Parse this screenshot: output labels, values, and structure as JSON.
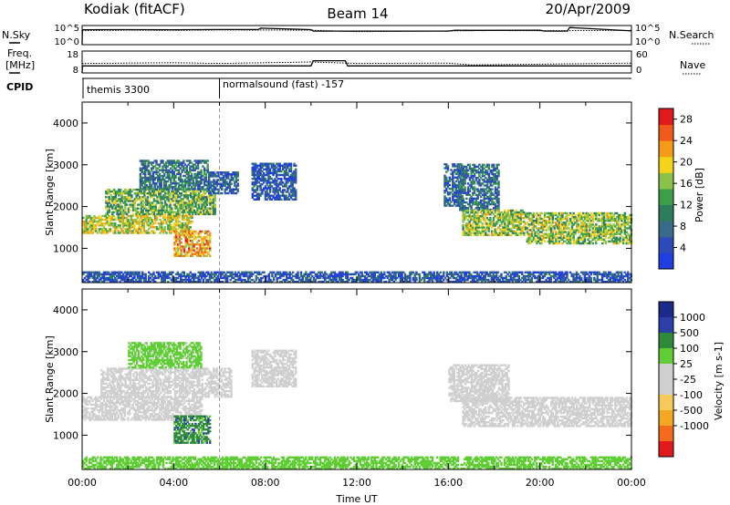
{
  "header": {
    "station": "Kodiak (fitACF)",
    "beam": "Beam 14",
    "date": "20/Apr/2009"
  },
  "side_labels": {
    "nsky": "N.Sky",
    "freq_line1": "Freq.",
    "freq_line2": "[MHz]",
    "cpid": "CPID",
    "nsearch": "N.Search",
    "nave": "Nave"
  },
  "cpid_segments": [
    {
      "start_hour": 0.0,
      "label": "themis 3300"
    },
    {
      "start_hour": 6.0,
      "label": "normalsound (fast) -157"
    }
  ],
  "colors": {
    "velocity_scale": [
      "#e31a1c",
      "#f36b1c",
      "#f5a623",
      "#f7c85a",
      "#cfcfcf",
      "#cfcfcf",
      "#5fce34",
      "#2e8b3a",
      "#2b3fa8",
      "#1a2b8c"
    ],
    "power_scale": [
      "#1f3fe0",
      "#2c4ab8",
      "#3a6a8a",
      "#2e7d5a",
      "#3aa04a",
      "#8bc34a",
      "#f5d31a",
      "#f59b1a",
      "#f05a1a",
      "#e01a1a"
    ],
    "ground_scatter": "#c8c8c8"
  },
  "chart_data": [
    {
      "type": "line",
      "title": "N.Sky / N.Search",
      "y_scale": "log",
      "ylim": [
        1,
        100000
      ],
      "y_ticks_left": [
        "10^5",
        "10^0"
      ],
      "y_ticks_right": [
        "10^5",
        "10^0"
      ],
      "x_range_hours": [
        0,
        24
      ],
      "series": [
        {
          "name": "N.Sky",
          "x": [
            0,
            0.01,
            2,
            4,
            6,
            7.7,
            7.8,
            10,
            10.1,
            12,
            16,
            16.3,
            17,
            20,
            20.2,
            21.2,
            21.3,
            24
          ],
          "y": [
            1,
            8000,
            8500,
            8000,
            9000,
            9000,
            20000,
            8500,
            3500,
            3500,
            3500,
            6000,
            5500,
            6000,
            3500,
            3500,
            30000,
            4000
          ]
        },
        {
          "name": "N.Search",
          "x": [
            0,
            2,
            4,
            6,
            8,
            10,
            12,
            16,
            18,
            20,
            22,
            24
          ],
          "y": [
            5000,
            6000,
            5500,
            7000,
            6500,
            6000,
            2500,
            4000,
            5000,
            4500,
            5000,
            5500
          ]
        }
      ]
    },
    {
      "type": "line",
      "title": "Freq. [MHz] / Nave",
      "ylim_left": [
        8,
        18
      ],
      "y_ticks_left": [
        "18",
        "8"
      ],
      "ylim_right": [
        0,
        60
      ],
      "y_ticks_right": [
        "60",
        "0"
      ],
      "x_range_hours": [
        0,
        24
      ],
      "series": [
        {
          "name": "Freq.",
          "x": [
            0,
            0.01,
            10,
            10.1,
            11.5,
            11.6,
            24
          ],
          "y": [
            8,
            11.2,
            11.2,
            13.6,
            13.6,
            11.2,
            11.2
          ]
        },
        {
          "name": "Nave",
          "x": [
            0,
            4,
            6,
            10,
            12,
            16,
            17,
            20,
            24
          ],
          "y": [
            26,
            28,
            26,
            30,
            26,
            27,
            22,
            24,
            27
          ]
        }
      ]
    },
    {
      "type": "heatmap",
      "title": "Power",
      "xlabel": "",
      "ylabel": "Slant Range [km]",
      "x_range_hours": [
        0,
        24
      ],
      "ylim": [
        180,
        4500
      ],
      "y_ticks": [
        1000,
        2000,
        3000,
        4000
      ],
      "colorbar": {
        "label": "Power [dB]",
        "range": [
          0,
          30
        ],
        "ticks": [
          4,
          8,
          12,
          16,
          20,
          24,
          28
        ]
      },
      "regions": [
        {
          "t0": 0.0,
          "t1": 4.8,
          "r0": 1350,
          "r1": 1800,
          "value": 18
        },
        {
          "t0": 1.0,
          "t1": 5.8,
          "r0": 1800,
          "r1": 2400,
          "value": 14
        },
        {
          "t0": 2.5,
          "t1": 5.5,
          "r0": 2400,
          "r1": 3100,
          "value": 9
        },
        {
          "t0": 4.0,
          "t1": 5.6,
          "r0": 800,
          "r1": 1400,
          "value": 22
        },
        {
          "t0": 5.5,
          "t1": 6.8,
          "r0": 2300,
          "r1": 2800,
          "value": 6
        },
        {
          "t0": 7.4,
          "t1": 9.3,
          "r0": 2150,
          "r1": 3050,
          "value": 5
        },
        {
          "t0": 15.8,
          "t1": 16.6,
          "r0": 2000,
          "r1": 3000,
          "value": 6
        },
        {
          "t0": 16.4,
          "t1": 18.2,
          "r0": 1900,
          "r1": 3000,
          "value": 8
        },
        {
          "t0": 16.6,
          "t1": 19.4,
          "r0": 1300,
          "r1": 1900,
          "value": 16
        },
        {
          "t0": 19.4,
          "t1": 24.0,
          "r0": 1100,
          "r1": 1850,
          "value": 16
        },
        {
          "t0": 0.0,
          "t1": 24.0,
          "r0": 180,
          "r1": 420,
          "value": 5
        }
      ]
    },
    {
      "type": "heatmap",
      "title": "Velocity",
      "xlabel": "Time UT",
      "ylabel": "Slant Range [km]",
      "x_ticks": [
        "00:00",
        "04:00",
        "08:00",
        "12:00",
        "16:00",
        "20:00",
        "00:00"
      ],
      "x_range_hours": [
        0,
        24
      ],
      "ylim": [
        180,
        4500
      ],
      "y_ticks": [
        1000,
        2000,
        3000,
        4000
      ],
      "colorbar": {
        "label": "Velocity [m s-1]",
        "ticks": [
          "1000",
          "500",
          "100",
          "25",
          "-25",
          "-100",
          "-500",
          "-1000"
        ]
      },
      "regions": [
        {
          "t0": 0.0,
          "t1": 5.2,
          "r0": 1350,
          "r1": 1900,
          "value": 0
        },
        {
          "t0": 0.8,
          "t1": 6.5,
          "r0": 1900,
          "r1": 2600,
          "value": 0
        },
        {
          "t0": 2.0,
          "t1": 5.2,
          "r0": 2600,
          "r1": 3200,
          "value": 40
        },
        {
          "t0": 4.0,
          "t1": 5.6,
          "r0": 800,
          "r1": 1450,
          "value": 300
        },
        {
          "t0": 7.4,
          "t1": 9.3,
          "r0": 2150,
          "r1": 3050,
          "value": 0
        },
        {
          "t0": 16.0,
          "t1": 18.6,
          "r0": 1800,
          "r1": 2700,
          "value": 0
        },
        {
          "t0": 16.6,
          "t1": 24.0,
          "r0": 1200,
          "r1": 1900,
          "value": 0
        },
        {
          "t0": 0.0,
          "t1": 24.0,
          "r0": 180,
          "r1": 480,
          "value": 60
        }
      ]
    }
  ]
}
